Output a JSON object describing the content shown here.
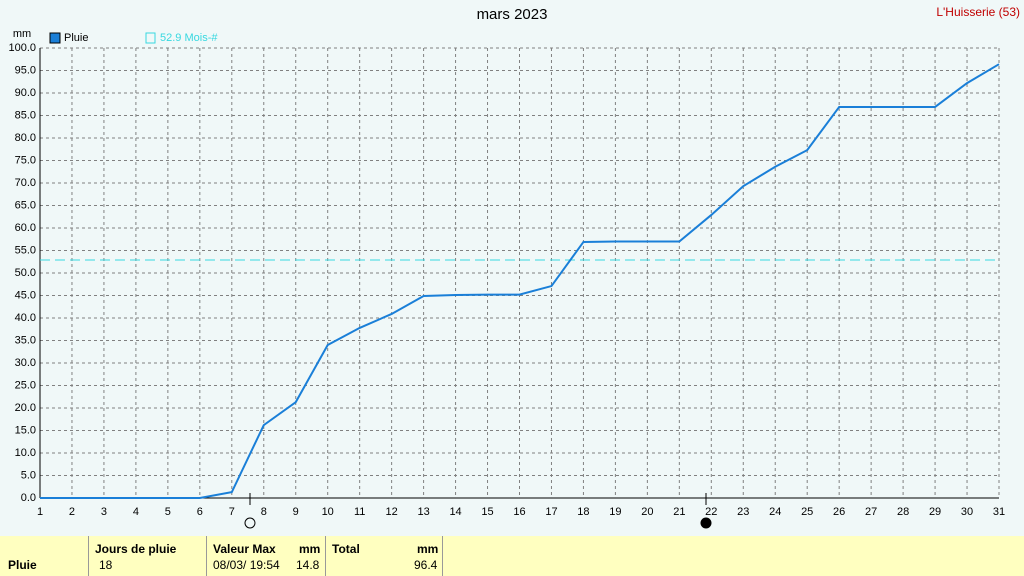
{
  "chart_data": {
    "type": "line",
    "title": "mars 2023",
    "station": "L'Huisserie (53)",
    "y_unit": "mm",
    "x": [
      1,
      2,
      3,
      4,
      5,
      6,
      7,
      8,
      9,
      10,
      11,
      12,
      13,
      14,
      15,
      16,
      17,
      18,
      19,
      20,
      21,
      22,
      23,
      24,
      25,
      26,
      27,
      28,
      29,
      30,
      31
    ],
    "series": [
      {
        "name": "Pluie",
        "color": "#1a7fd8",
        "values": [
          0,
          0,
          0,
          0,
          0,
          0,
          1.3,
          16.2,
          21.3,
          34.0,
          37.8,
          40.9,
          44.9,
          45.1,
          45.2,
          45.2,
          47.1,
          56.9,
          57.0,
          57.0,
          57.0,
          62.9,
          69.3,
          73.6,
          77.3,
          86.9,
          86.9,
          86.9,
          86.9,
          92.2,
          96.4
        ]
      }
    ],
    "reference": {
      "value": 52.9,
      "label": "52.9 Mois-#",
      "color": "#38d8e0"
    },
    "xlim": [
      1,
      31
    ],
    "xticks": [
      1,
      2,
      3,
      4,
      5,
      6,
      7,
      8,
      9,
      10,
      11,
      12,
      13,
      14,
      15,
      16,
      17,
      18,
      19,
      20,
      21,
      22,
      23,
      24,
      25,
      26,
      27,
      28,
      29,
      30,
      31
    ],
    "ylim": [
      0,
      100
    ],
    "yticks": [
      {
        "value": 0,
        "label": "0.0"
      },
      {
        "value": 5,
        "label": "5.0"
      },
      {
        "value": 10,
        "label": "10.0"
      },
      {
        "value": 15,
        "label": "15.0"
      },
      {
        "value": 20,
        "label": "20.0"
      },
      {
        "value": 25,
        "label": "25.0"
      },
      {
        "value": 30,
        "label": "30.0"
      },
      {
        "value": 35,
        "label": "35.0"
      },
      {
        "value": 40,
        "label": "40.0"
      },
      {
        "value": 45,
        "label": "45.0"
      },
      {
        "value": 50,
        "label": "50.0"
      },
      {
        "value": 55,
        "label": "55.0"
      },
      {
        "value": 60,
        "label": "60.0"
      },
      {
        "value": 65,
        "label": "65.0"
      },
      {
        "value": 70,
        "label": "70.0"
      },
      {
        "value": 75,
        "label": "75.0"
      },
      {
        "value": 80,
        "label": "80.0"
      },
      {
        "value": 85,
        "label": "85.0"
      },
      {
        "value": 90,
        "label": "90.0"
      },
      {
        "value": 95,
        "label": "95.0"
      },
      {
        "value": 100,
        "label": "100.0"
      }
    ],
    "grid": true
  },
  "summary": {
    "row_label": "Pluie",
    "jours": {
      "header": "Jours de pluie",
      "value": 18
    },
    "max": {
      "header": "Valeur Max",
      "unit": "mm",
      "date": "08/03/ 19:54",
      "value": 14.8
    },
    "total": {
      "header": "Total",
      "unit": "mm",
      "value": 96.4
    }
  }
}
